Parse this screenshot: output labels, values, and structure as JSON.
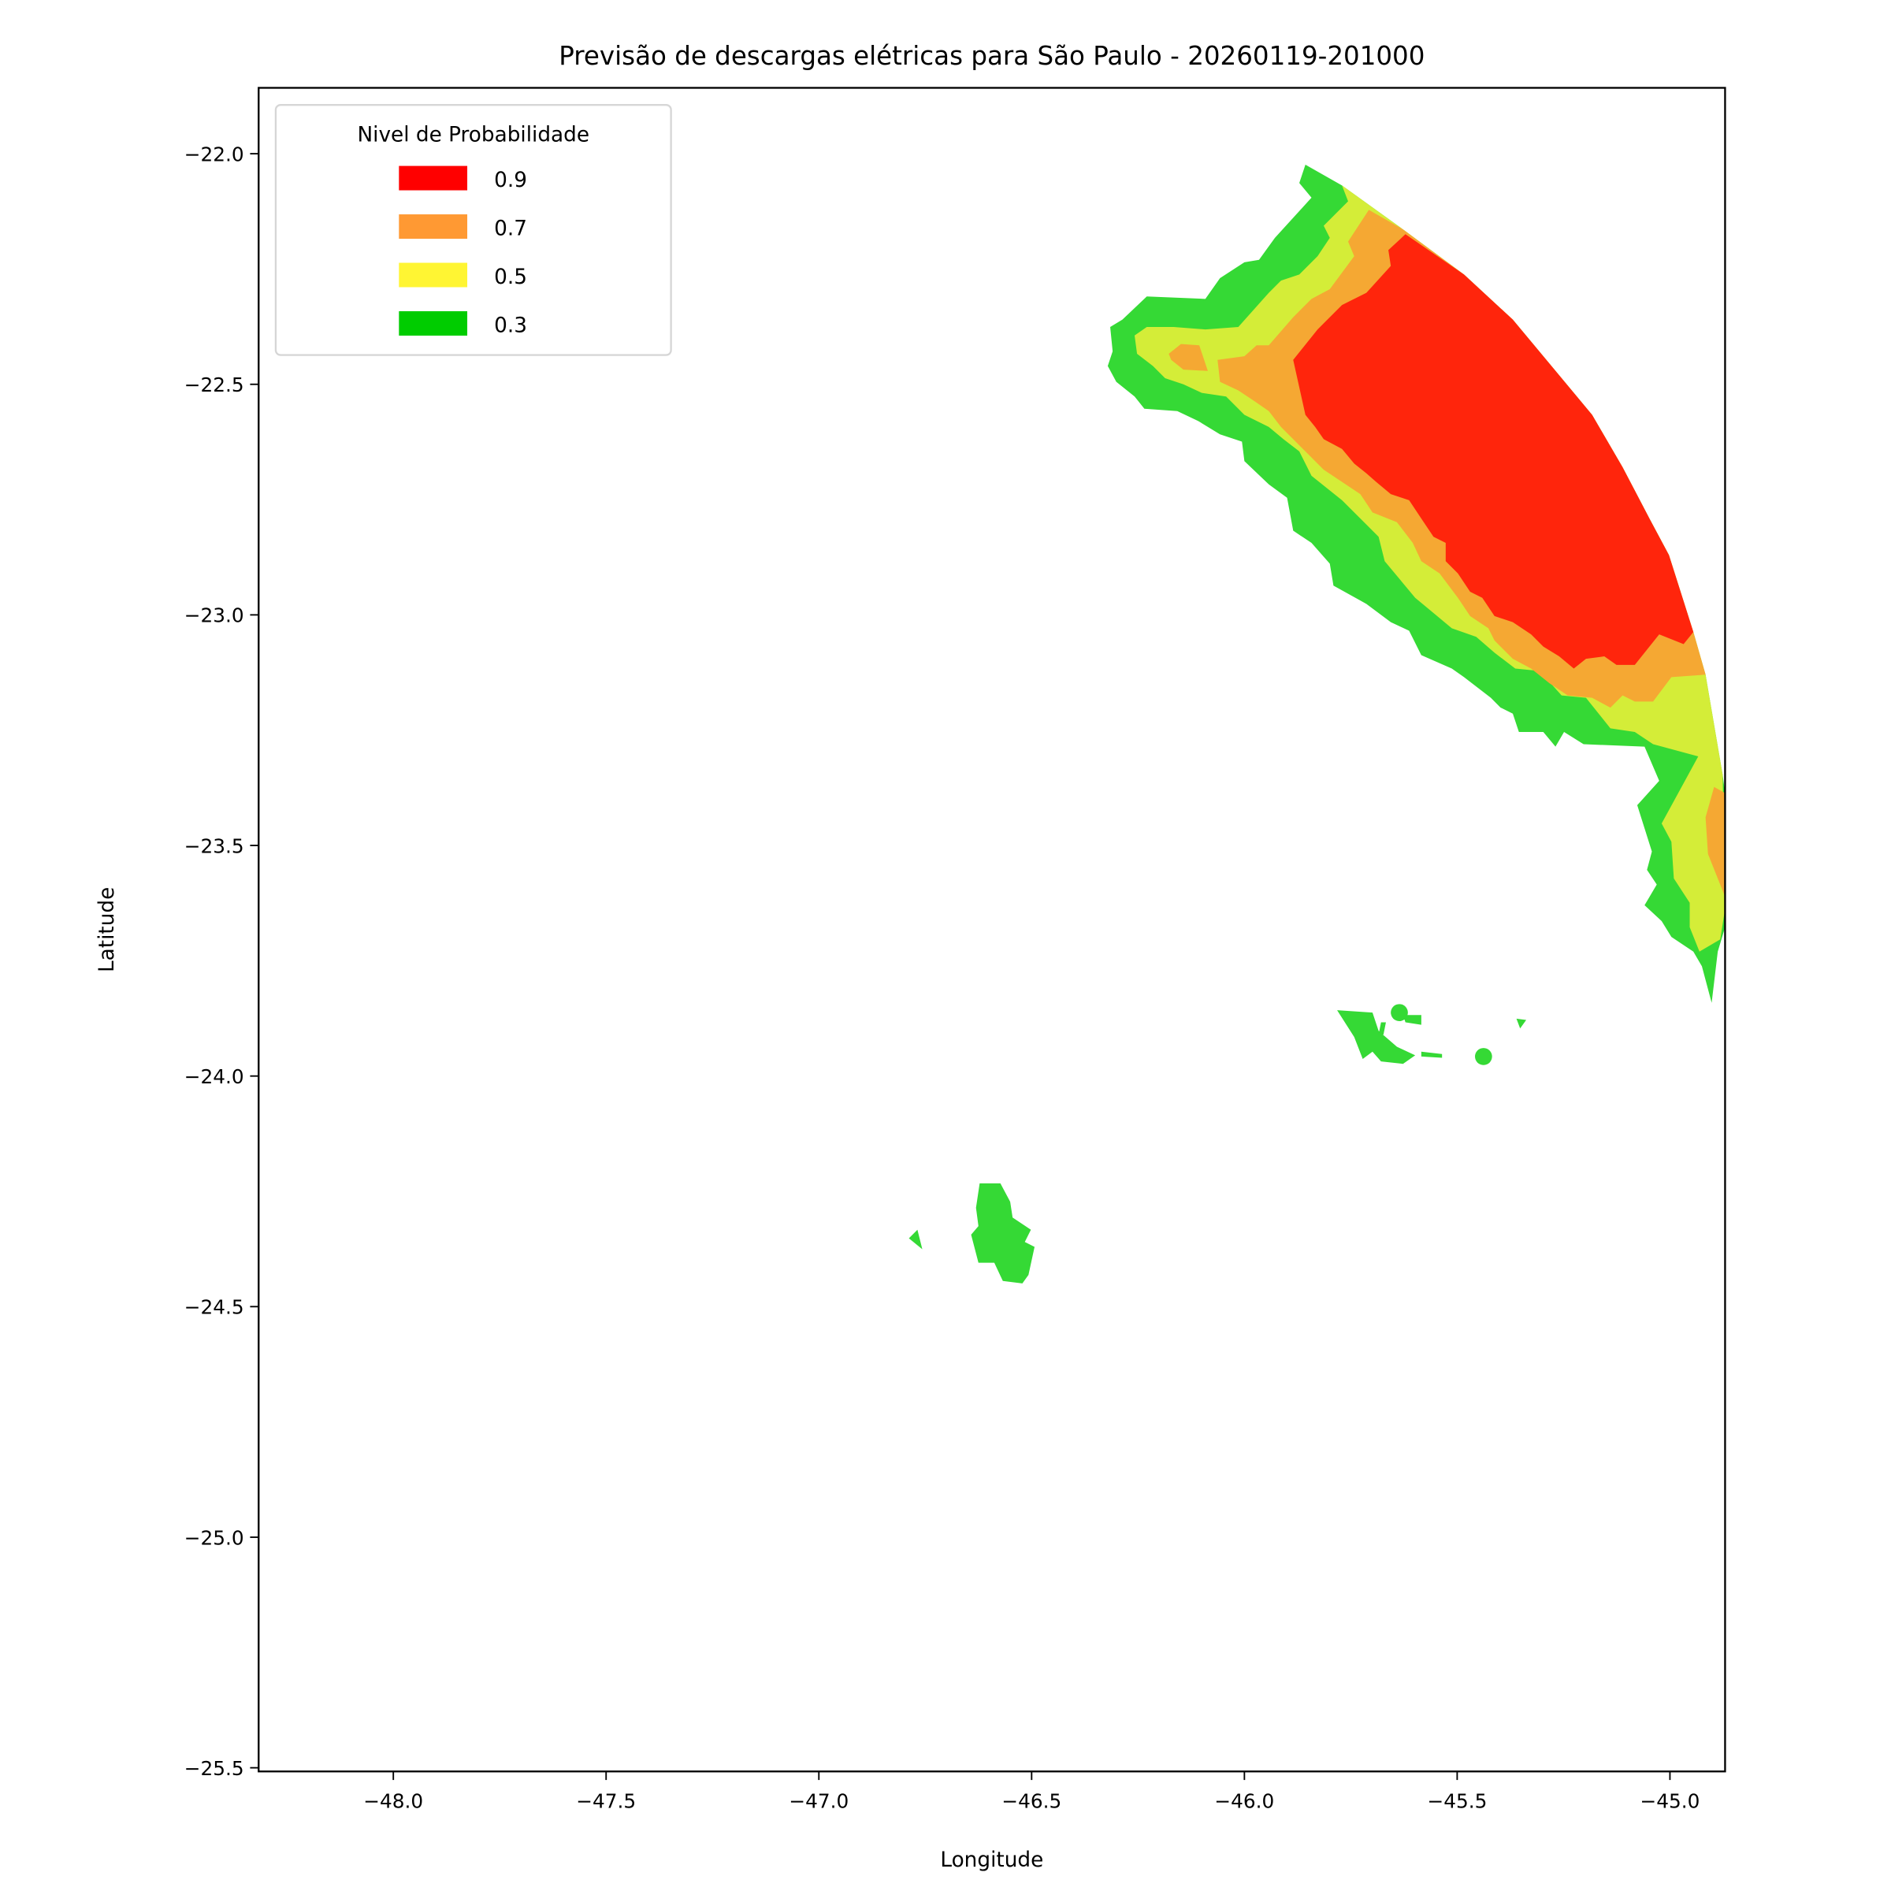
{
  "chart_data": {
    "type": "heatmap",
    "subtype": "filled-contour-map",
    "title": "Previsão de descargas elétricas para São Paulo - 20260119-201000",
    "xlabel": "Longitude",
    "ylabel": "Latitude",
    "xlim": [
      -48.32,
      -44.88
    ],
    "ylim": [
      -25.51,
      -21.85
    ],
    "xticks": [
      -48.0,
      -47.5,
      -47.0,
      -46.5,
      -46.0,
      -45.5,
      -45.0
    ],
    "xtick_labels": [
      "−48.0",
      "−47.5",
      "−47.0",
      "−46.5",
      "−46.0",
      "−45.5",
      "−45.0"
    ],
    "yticks": [
      -22.0,
      -22.5,
      -23.0,
      -23.5,
      -24.0,
      -24.5,
      -25.0,
      -25.5
    ],
    "ytick_labels": [
      "−22.0",
      "−22.5",
      "−23.0",
      "−23.5",
      "−24.0",
      "−24.5",
      "−25.0",
      "−25.5"
    ],
    "grid": false,
    "legend": {
      "title": "Nivel de Probabilidade",
      "placement": "top-left",
      "entries": [
        {
          "label": "0.9",
          "color": "#ff0000"
        },
        {
          "label": "0.7",
          "color": "#ff9933"
        },
        {
          "label": "0.5",
          "color": "#fff533"
        },
        {
          "label": "0.3",
          "color": "#00cc00"
        }
      ]
    },
    "levels": [
      {
        "level": 0.3,
        "color": "#35d935"
      },
      {
        "level": 0.5,
        "color": "#d4ed38"
      },
      {
        "level": 0.7,
        "color": "#f5a833"
      },
      {
        "level": 0.9,
        "color": "#ff250c"
      }
    ]
  }
}
